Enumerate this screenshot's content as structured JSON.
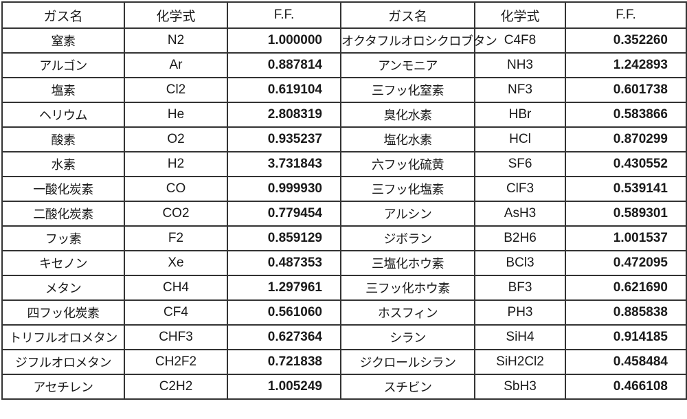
{
  "headers": [
    "ガス名",
    "化学式",
    "F.F.",
    "ガス名",
    "化学式",
    "F.F."
  ],
  "rows": [
    {
      "left": {
        "name": "窒素",
        "formula": "N2",
        "ff": "1.000000"
      },
      "right": {
        "name": "オクタフルオロシクロブタン",
        "formula": "C4F8",
        "ff": "0.352260"
      }
    },
    {
      "left": {
        "name": "アルゴン",
        "formula": "Ar",
        "ff": "0.887814"
      },
      "right": {
        "name": "アンモニア",
        "formula": "NH3",
        "ff": "1.242893"
      }
    },
    {
      "left": {
        "name": "塩素",
        "formula": "Cl2",
        "ff": "0.619104"
      },
      "right": {
        "name": "三フッ化窒素",
        "formula": "NF3",
        "ff": "0.601738"
      }
    },
    {
      "left": {
        "name": "ヘリウム",
        "formula": "He",
        "ff": "2.808319"
      },
      "right": {
        "name": "臭化水素",
        "formula": "HBr",
        "ff": "0.583866"
      }
    },
    {
      "left": {
        "name": "酸素",
        "formula": "O2",
        "ff": "0.935237"
      },
      "right": {
        "name": "塩化水素",
        "formula": "HCl",
        "ff": "0.870299"
      }
    },
    {
      "left": {
        "name": "水素",
        "formula": "H2",
        "ff": "3.731843"
      },
      "right": {
        "name": "六フッ化硫黄",
        "formula": "SF6",
        "ff": "0.430552"
      }
    },
    {
      "left": {
        "name": "一酸化炭素",
        "formula": "CO",
        "ff": "0.999930"
      },
      "right": {
        "name": "三フッ化塩素",
        "formula": "ClF3",
        "ff": "0.539141"
      }
    },
    {
      "left": {
        "name": "二酸化炭素",
        "formula": "CO2",
        "ff": "0.779454"
      },
      "right": {
        "name": "アルシン",
        "formula": "AsH3",
        "ff": "0.589301"
      }
    },
    {
      "left": {
        "name": "フッ素",
        "formula": "F2",
        "ff": "0.859129"
      },
      "right": {
        "name": "ジボラン",
        "formula": "B2H6",
        "ff": "1.001537"
      }
    },
    {
      "left": {
        "name": "キセノン",
        "formula": "Xe",
        "ff": "0.487353"
      },
      "right": {
        "name": "三塩化ホウ素",
        "formula": "BCl3",
        "ff": "0.472095"
      }
    },
    {
      "left": {
        "name": "メタン",
        "formula": "CH4",
        "ff": "1.297961"
      },
      "right": {
        "name": "三フッ化ホウ素",
        "formula": "BF3",
        "ff": "0.621690"
      }
    },
    {
      "left": {
        "name": "四フッ化炭素",
        "formula": "CF4",
        "ff": "0.561060"
      },
      "right": {
        "name": "ホスフィン",
        "formula": "PH3",
        "ff": "0.885838"
      }
    },
    {
      "left": {
        "name": "トリフルオロメタン",
        "formula": "CHF3",
        "ff": "0.627364"
      },
      "right": {
        "name": "シラン",
        "formula": "SiH4",
        "ff": "0.914185"
      }
    },
    {
      "left": {
        "name": "ジフルオロメタン",
        "formula": "CH2F2",
        "ff": "0.721838"
      },
      "right": {
        "name": "ジクロールシラン",
        "formula": "SiH2Cl2",
        "ff": "0.458484"
      }
    },
    {
      "left": {
        "name": "アセチレン",
        "formula": "C2H2",
        "ff": "1.005249"
      },
      "right": {
        "name": "スチビン",
        "formula": "SbH3",
        "ff": "0.466108"
      }
    }
  ]
}
